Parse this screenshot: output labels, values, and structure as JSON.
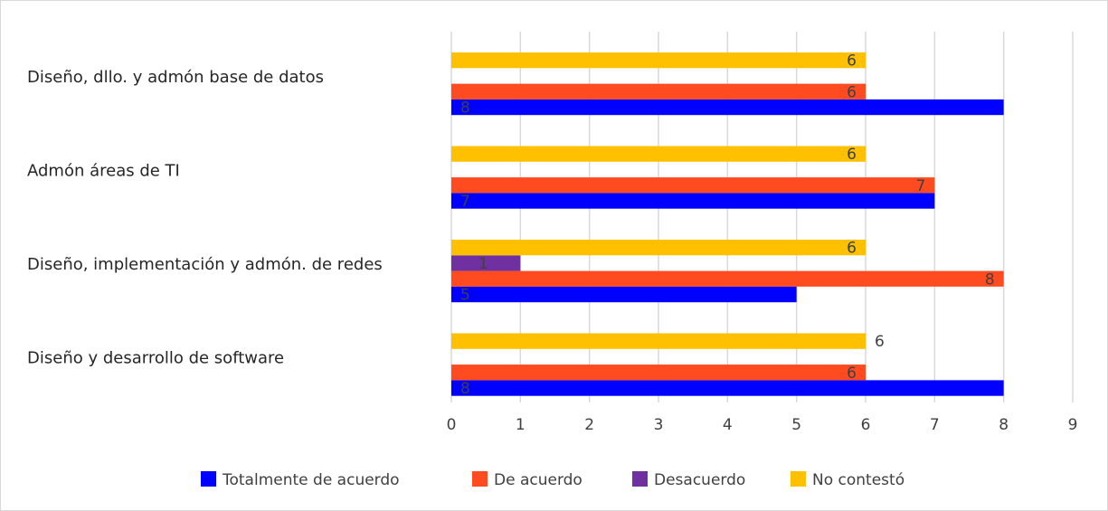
{
  "chart_data": {
    "type": "hbar",
    "categories": [
      "Diseño y desarrollo de software",
      "Diseño, implementación y admón. de redes",
      "Admón áreas de TI",
      "Diseño, dllo. y admón base de datos"
    ],
    "series": [
      {
        "name": "Totalmente de acuerdo",
        "color": "#0000ff",
        "values": [
          8,
          5,
          7,
          8
        ]
      },
      {
        "name": "De acuerdo",
        "color": "#ff4b1f",
        "values": [
          6,
          8,
          7,
          6
        ]
      },
      {
        "name": "Desacuerdo",
        "color": "#7030a0",
        "values": [
          null,
          1,
          null,
          null
        ]
      },
      {
        "name": "No contestó",
        "color": "#ffc000",
        "values": [
          6,
          6,
          6,
          6
        ]
      }
    ],
    "xlim": [
      0,
      9
    ],
    "xticks": [
      0,
      1,
      2,
      3,
      4,
      5,
      6,
      7,
      8,
      9
    ],
    "grid": true,
    "legend": "bottom"
  }
}
